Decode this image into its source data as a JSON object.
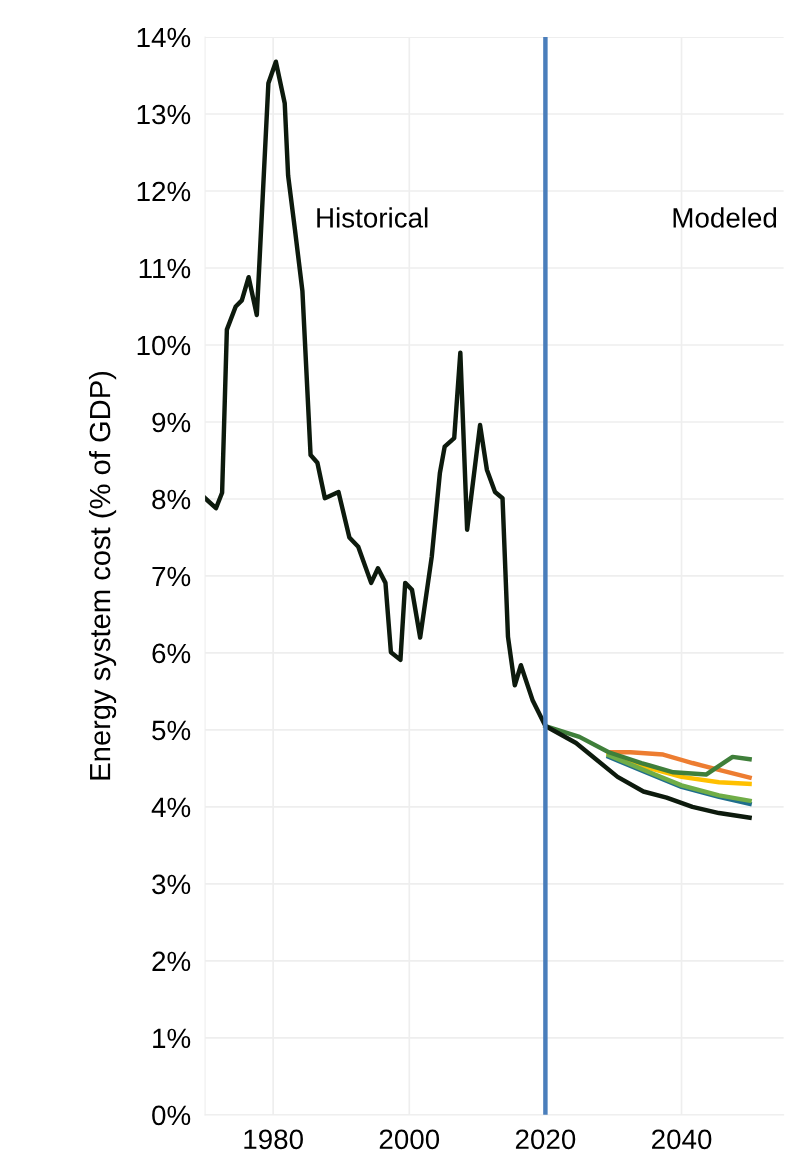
{
  "chart_data": {
    "type": "line",
    "ylabel": "Energy system cost (% of GDP)",
    "annotations": [
      "Historical",
      "Modeled"
    ],
    "xlim": [
      1970,
      2055
    ],
    "xticks": [
      1980,
      2000,
      2020,
      2040
    ],
    "ylim": [
      0,
      14
    ],
    "yticks": [
      {
        "value": 0,
        "label": "0%"
      },
      {
        "value": 1,
        "label": "1%"
      },
      {
        "value": 2,
        "label": "2%"
      },
      {
        "value": 3,
        "label": "3%"
      },
      {
        "value": 4,
        "label": "4%"
      },
      {
        "value": 5,
        "label": "5%"
      },
      {
        "value": 6,
        "label": "6%"
      },
      {
        "value": 7,
        "label": "7%"
      },
      {
        "value": 8,
        "label": "8%"
      },
      {
        "value": 9,
        "label": "9%"
      },
      {
        "value": 10,
        "label": "10%"
      },
      {
        "value": 11,
        "label": "11%"
      },
      {
        "value": 12,
        "label": "12%"
      },
      {
        "value": 13,
        "label": "13%"
      },
      {
        "value": 14,
        "label": "14%"
      }
    ],
    "grid": true,
    "marker": "none",
    "line_style": "solid",
    "ref_lines": [
      {
        "axis": "x",
        "value": 2020,
        "label": null,
        "color": "#4a7ebb"
      }
    ],
    "series": [
      {
        "color": "#ed7d31",
        "x": [
          2029.3,
          2032.5,
          2037.3,
          2041.6,
          2045.5,
          2050
        ],
        "values": [
          4.71,
          4.71,
          4.68,
          4.57,
          4.48,
          4.38
        ]
      },
      {
        "color": "#ffc000",
        "x": [
          2029.3,
          2035,
          2040,
          2045.5,
          2050
        ],
        "values": [
          4.69,
          4.51,
          4.39,
          4.32,
          4.3
        ]
      },
      {
        "color": "#1f6e8c",
        "x": [
          2029.3,
          2035,
          2040,
          2045.5,
          2050
        ],
        "values": [
          4.65,
          4.44,
          4.26,
          4.13,
          4.04
        ]
      },
      {
        "color": "#70ad47",
        "x": [
          2029.3,
          2035,
          2040,
          2045.5,
          2050
        ],
        "values": [
          4.67,
          4.46,
          4.28,
          4.15,
          4.08
        ]
      },
      {
        "color": "#3f7f3a",
        "x": [
          2020,
          2025,
          2029.3,
          2034.1,
          2038.8,
          2043.6,
          2047.5,
          2050
        ],
        "values": [
          5.05,
          4.91,
          4.71,
          4.57,
          4.45,
          4.42,
          4.65,
          4.62
        ]
      },
      {
        "color": "#0d1a0d",
        "x": [
          1970,
          1971.6,
          1972.5,
          1973.2,
          1974.5,
          1975.4,
          1976.4,
          1977.6,
          1979.3,
          1980.4,
          1981.7,
          1982.2,
          1983.2,
          1984.3,
          1985.5,
          1986.5,
          1987.6,
          1989.6,
          1991.2,
          1992.5,
          1994.4,
          1995.4,
          1996.5,
          1997.3,
          1998.7,
          1999.4,
          2000.4,
          2001.6,
          2003.3,
          2004.5,
          2005.2,
          2006.6,
          2007.5,
          2008.5,
          2010.4,
          2011.4,
          2012.6,
          2013.7,
          2014.5,
          2015.5,
          2016.4,
          2018.1,
          2020,
          2024.5,
          2030.6,
          2034.4,
          2037.8,
          2041.6,
          2045.5,
          2050
        ],
        "values": [
          8.01,
          7.88,
          8.08,
          10.2,
          10.5,
          10.58,
          10.88,
          10.39,
          13.4,
          13.68,
          13.14,
          12.2,
          11.5,
          10.7,
          8.57,
          8.47,
          8.01,
          8.09,
          7.5,
          7.38,
          6.91,
          7.1,
          6.91,
          6.01,
          5.91,
          6.91,
          6.82,
          6.2,
          7.25,
          8.34,
          8.68,
          8.79,
          9.9,
          7.6,
          8.96,
          8.38,
          8.09,
          8.01,
          6.21,
          5.58,
          5.84,
          5.39,
          5.05,
          4.83,
          4.39,
          4.2,
          4.12,
          4.0,
          3.92,
          3.86
        ]
      }
    ]
  }
}
